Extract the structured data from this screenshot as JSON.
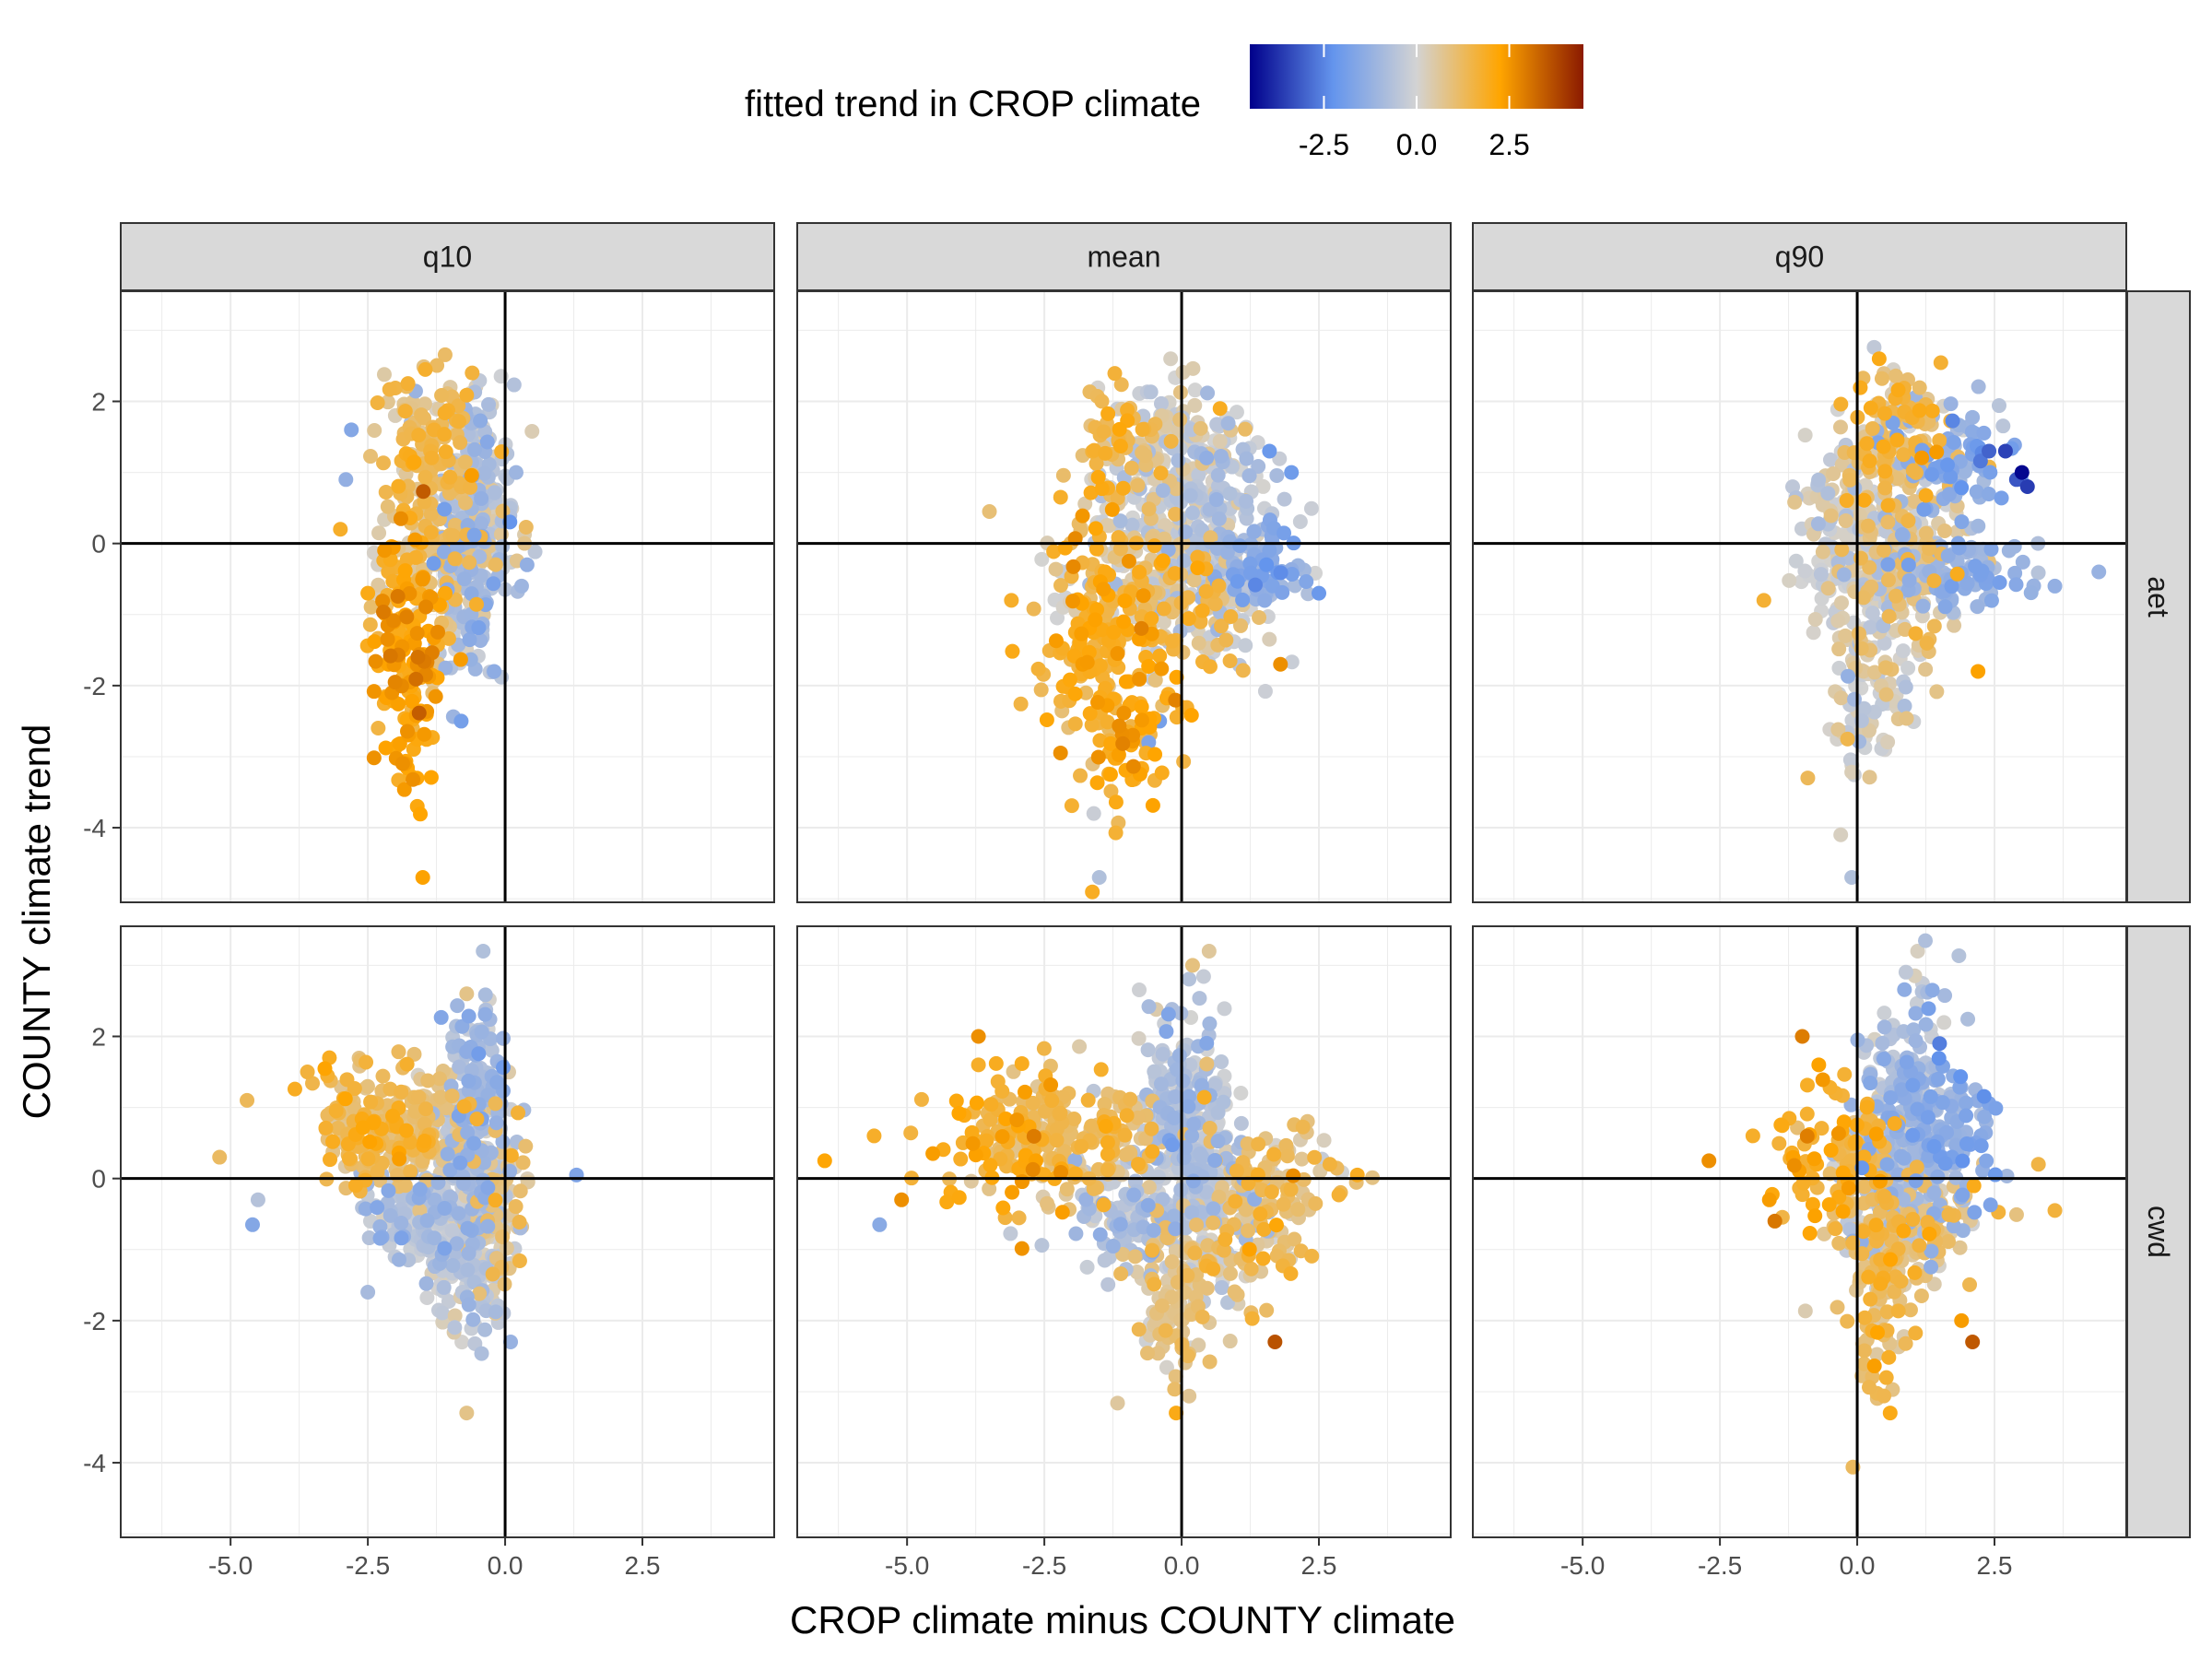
{
  "chart_data": {
    "type": "scatter",
    "facet_columns": [
      "q10",
      "mean",
      "q90"
    ],
    "facet_rows": [
      "aet",
      "cwd"
    ],
    "xlabel": "CROP climate minus COUNTY climate",
    "ylabel": "COUNTY climate trend",
    "xlim": [
      -7.0,
      4.9
    ],
    "ylim": [
      -5.05,
      3.55
    ],
    "x_ticks": [
      -5.0,
      -2.5,
      0.0,
      2.5
    ],
    "x_tick_labels": [
      "-5.0",
      "-2.5",
      "0.0",
      "2.5"
    ],
    "y_ticks": [
      -4,
      -2,
      0,
      2
    ],
    "y_tick_labels": [
      "-4",
      "-2",
      "0",
      "2"
    ],
    "reference_lines": {
      "x": 0,
      "y": 0
    },
    "grid": true,
    "legend": {
      "title": "fitted trend in CROP climate",
      "position": "top",
      "range": [
        -4.5,
        4.5
      ],
      "ticks": [
        -2.5,
        0.0,
        2.5
      ],
      "tick_labels": [
        "-2.5",
        "0.0",
        "2.5"
      ],
      "colors": [
        "#00008b",
        "#6495ed",
        "#d3d3d3",
        "#ffa500",
        "#8b1a00"
      ]
    },
    "panels": [
      {
        "col": "q10",
        "row": "aet",
        "clusters": [
          {
            "cx": -1.4,
            "cy": 1.3,
            "sx": 0.5,
            "sy": 0.55,
            "n": 120,
            "c": 1.2
          },
          {
            "cx": -0.6,
            "cy": 1.0,
            "sx": 0.35,
            "sy": 0.6,
            "n": 100,
            "c": -0.4
          },
          {
            "cx": -1.8,
            "cy": -1.5,
            "sx": 0.3,
            "sy": 0.9,
            "n": 160,
            "c": 2.2
          },
          {
            "cx": -1.2,
            "cy": -0.2,
            "sx": 0.5,
            "sy": 0.6,
            "n": 140,
            "c": 0.7
          },
          {
            "cx": -0.6,
            "cy": -0.6,
            "sx": 0.3,
            "sy": 0.7,
            "n": 110,
            "c": -0.7
          },
          {
            "cx": -0.3,
            "cy": 0.5,
            "sx": 0.3,
            "sy": 0.6,
            "n": 70,
            "c": -0.5
          }
        ],
        "points": [
          {
            "x": -2.8,
            "y": 1.6,
            "c": -1.6
          },
          {
            "x": -2.9,
            "y": 0.9,
            "c": -1.3
          },
          {
            "x": -3.0,
            "y": 0.2,
            "c": 1.8
          },
          {
            "x": -2.5,
            "y": -0.7,
            "c": 2.0
          },
          {
            "x": -1.5,
            "y": -4.7,
            "c": 2.3
          },
          {
            "x": -1.6,
            "y": -3.7,
            "c": 2.1
          },
          {
            "x": 0.4,
            "y": -0.3,
            "c": -1.3
          },
          {
            "x": 0.3,
            "y": -0.6,
            "c": -1.1
          },
          {
            "x": 0.2,
            "y": 1.0,
            "c": -1.1
          },
          {
            "x": -0.2,
            "y": -1.8,
            "c": -1.4
          },
          {
            "x": -0.8,
            "y": -2.5,
            "c": -1.9
          },
          {
            "x": -0.6,
            "y": 2.4,
            "c": 1.6
          },
          {
            "x": -1.0,
            "y": 2.2,
            "c": 0.5
          },
          {
            "x": -2.0,
            "y": 1.8,
            "c": 0.3
          }
        ]
      },
      {
        "col": "mean",
        "row": "aet",
        "clusters": [
          {
            "cx": -0.1,
            "cy": 1.3,
            "sx": 0.6,
            "sy": 0.55,
            "n": 150,
            "c": -0.1
          },
          {
            "cx": 0.7,
            "cy": 0.9,
            "sx": 0.5,
            "sy": 0.45,
            "n": 80,
            "c": -0.5
          },
          {
            "cx": -1.2,
            "cy": 1.4,
            "sx": 0.5,
            "sy": 0.4,
            "n": 60,
            "c": 1.4
          },
          {
            "cx": -1.4,
            "cy": -1.3,
            "sx": 0.6,
            "sy": 0.9,
            "n": 180,
            "c": 1.8
          },
          {
            "cx": -0.5,
            "cy": -0.3,
            "sx": 0.8,
            "sy": 0.6,
            "n": 200,
            "c": 0.1
          },
          {
            "cx": 0.6,
            "cy": -0.4,
            "sx": 0.6,
            "sy": 0.5,
            "n": 130,
            "c": -0.3
          },
          {
            "cx": 1.6,
            "cy": -0.4,
            "sx": 0.4,
            "sy": 0.25,
            "n": 70,
            "c": -1.4
          },
          {
            "cx": -0.9,
            "cy": -2.6,
            "sx": 0.5,
            "sy": 0.5,
            "n": 60,
            "c": 2.0
          },
          {
            "cx": 0.3,
            "cy": -0.9,
            "sx": 0.5,
            "sy": 0.45,
            "n": 60,
            "c": 1.2
          }
        ],
        "points": [
          {
            "x": -3.5,
            "y": 0.45,
            "c": 1.0
          },
          {
            "x": -3.1,
            "y": -0.8,
            "c": 1.8
          },
          {
            "x": -1.5,
            "y": -4.7,
            "c": -0.7
          },
          {
            "x": -1.6,
            "y": -3.8,
            "c": -0.2
          },
          {
            "x": 2.5,
            "y": -0.7,
            "c": -2.1
          },
          {
            "x": 2.0,
            "y": 1.0,
            "c": -2.0
          },
          {
            "x": 1.6,
            "y": 1.3,
            "c": -2.1
          },
          {
            "x": 1.8,
            "y": -1.7,
            "c": 2.6
          },
          {
            "x": 0.7,
            "y": 1.9,
            "c": 1.9
          },
          {
            "x": -0.6,
            "y": -2.8,
            "c": -1.7
          },
          {
            "x": -0.4,
            "y": -2.5,
            "c": -1.9
          },
          {
            "x": -0.2,
            "y": 2.6,
            "c": 0.2
          }
        ]
      },
      {
        "col": "q90",
        "row": "aet",
        "clusters": [
          {
            "cx": 0.7,
            "cy": 1.4,
            "sx": 0.45,
            "sy": 0.6,
            "n": 120,
            "c": 1.2
          },
          {
            "cx": 1.7,
            "cy": 1.2,
            "sx": 0.5,
            "sy": 0.4,
            "n": 90,
            "c": -1.3
          },
          {
            "cx": 0.2,
            "cy": -0.2,
            "sx": 0.6,
            "sy": 0.75,
            "n": 220,
            "c": -0.1
          },
          {
            "cx": 0.9,
            "cy": -0.4,
            "sx": 0.5,
            "sy": 0.6,
            "n": 120,
            "c": 0.8
          },
          {
            "cx": 1.9,
            "cy": -0.4,
            "sx": 0.6,
            "sy": 0.25,
            "n": 100,
            "c": -1.1
          },
          {
            "cx": 0.2,
            "cy": -2.2,
            "sx": 0.35,
            "sy": 0.6,
            "n": 80,
            "c": 0.1
          },
          {
            "cx": -0.5,
            "cy": 0.6,
            "sx": 0.3,
            "sy": 0.5,
            "n": 40,
            "c": 0.3
          }
        ],
        "points": [
          {
            "x": 2.9,
            "y": 0.9,
            "c": -3.2
          },
          {
            "x": 3.0,
            "y": 1.0,
            "c": -4.4
          },
          {
            "x": 3.1,
            "y": 0.8,
            "c": -3.6
          },
          {
            "x": 2.4,
            "y": 1.3,
            "c": -3.0
          },
          {
            "x": 2.7,
            "y": 1.3,
            "c": -3.5
          },
          {
            "x": 4.4,
            "y": -0.4,
            "c": -1.2
          },
          {
            "x": 3.6,
            "y": -0.6,
            "c": -1.3
          },
          {
            "x": 2.2,
            "y": -1.8,
            "c": 2.3
          },
          {
            "x": 0.4,
            "y": 2.6,
            "c": 2.0
          },
          {
            "x": -0.1,
            "y": -4.7,
            "c": -0.7
          },
          {
            "x": -0.3,
            "y": -4.1,
            "c": 0.2
          },
          {
            "x": -0.9,
            "y": -3.3,
            "c": 1.3
          },
          {
            "x": -1.7,
            "y": -0.8,
            "c": 1.7
          },
          {
            "x": -0.9,
            "y": 0.7,
            "c": 0.2
          }
        ]
      },
      {
        "col": "q10",
        "row": "cwd",
        "clusters": [
          {
            "cx": -2.3,
            "cy": 0.7,
            "sx": 0.6,
            "sy": 0.4,
            "n": 160,
            "c": 1.3
          },
          {
            "cx": -1.4,
            "cy": 0.8,
            "sx": 0.5,
            "sy": 0.4,
            "n": 110,
            "c": 0.8
          },
          {
            "cx": -0.5,
            "cy": 1.1,
            "sx": 0.3,
            "sy": 0.7,
            "n": 140,
            "c": -0.9
          },
          {
            "cx": -0.9,
            "cy": -0.5,
            "sx": 0.45,
            "sy": 0.55,
            "n": 150,
            "c": -0.5
          },
          {
            "cx": -0.2,
            "cy": -0.2,
            "sx": 0.3,
            "sy": 0.6,
            "n": 100,
            "c": 0.6
          },
          {
            "cx": -0.6,
            "cy": -1.6,
            "sx": 0.3,
            "sy": 0.5,
            "n": 80,
            "c": -0.3
          },
          {
            "cx": -1.8,
            "cy": -0.5,
            "sx": 0.5,
            "sy": 0.35,
            "n": 70,
            "c": -0.8
          }
        ],
        "points": [
          {
            "x": -5.2,
            "y": 0.3,
            "c": 1.2
          },
          {
            "x": -4.7,
            "y": 1.1,
            "c": 1.3
          },
          {
            "x": -4.6,
            "y": -0.65,
            "c": -1.6
          },
          {
            "x": -4.5,
            "y": -0.3,
            "c": -0.6
          },
          {
            "x": -3.6,
            "y": 1.5,
            "c": 1.6
          },
          {
            "x": -3.2,
            "y": 1.7,
            "c": 1.9
          },
          {
            "x": 1.3,
            "y": 0.05,
            "c": -1.7
          },
          {
            "x": 0.1,
            "y": -2.3,
            "c": -1.2
          },
          {
            "x": -0.7,
            "y": -3.3,
            "c": 0.8
          },
          {
            "x": -0.4,
            "y": 3.2,
            "c": -0.7
          },
          {
            "x": -0.7,
            "y": 2.6,
            "c": 0.8
          },
          {
            "x": -2.5,
            "y": -1.6,
            "c": -0.9
          }
        ]
      },
      {
        "col": "mean",
        "row": "cwd",
        "clusters": [
          {
            "cx": -1.9,
            "cy": 0.6,
            "sx": 0.9,
            "sy": 0.45,
            "n": 200,
            "c": 1.2
          },
          {
            "cx": -3.4,
            "cy": 0.5,
            "sx": 0.9,
            "sy": 0.55,
            "n": 70,
            "c": 1.9
          },
          {
            "cx": 0.0,
            "cy": 0.9,
            "sx": 0.4,
            "sy": 0.8,
            "n": 180,
            "c": -0.6
          },
          {
            "cx": 0.4,
            "cy": -0.2,
            "sx": 0.7,
            "sy": 0.6,
            "n": 200,
            "c": -0.4
          },
          {
            "cx": -0.1,
            "cy": -1.6,
            "sx": 0.4,
            "sy": 0.6,
            "n": 120,
            "c": 0.8
          },
          {
            "cx": 1.6,
            "cy": 0.0,
            "sx": 0.6,
            "sy": 0.4,
            "n": 80,
            "c": 0.9
          },
          {
            "cx": 1.2,
            "cy": -1.0,
            "sx": 0.5,
            "sy": 0.4,
            "n": 60,
            "c": 1.1
          },
          {
            "cx": -1.1,
            "cy": -0.6,
            "sx": 0.6,
            "sy": 0.4,
            "n": 80,
            "c": -0.6
          }
        ],
        "points": [
          {
            "x": -6.5,
            "y": 0.25,
            "c": 2.2
          },
          {
            "x": -5.6,
            "y": 0.6,
            "c": 1.8
          },
          {
            "x": -5.5,
            "y": -0.65,
            "c": -1.5
          },
          {
            "x": -5.1,
            "y": -0.3,
            "c": 2.6
          },
          {
            "x": -3.7,
            "y": 2.0,
            "c": 2.6
          },
          {
            "x": -3.7,
            "y": 1.6,
            "c": 1.8
          },
          {
            "x": 3.2,
            "y": 0.05,
            "c": 1.9
          },
          {
            "x": 2.7,
            "y": 0.2,
            "c": 1.6
          },
          {
            "x": 1.7,
            "y": -2.3,
            "c": 3.6
          },
          {
            "x": 0.5,
            "y": 3.2,
            "c": 0.6
          },
          {
            "x": -0.1,
            "y": -3.3,
            "c": 2.0
          },
          {
            "x": 0.2,
            "y": 3.0,
            "c": 0.9
          }
        ]
      },
      {
        "col": "q90",
        "row": "cwd",
        "clusters": [
          {
            "cx": 0.9,
            "cy": 0.9,
            "sx": 0.45,
            "sy": 0.8,
            "n": 200,
            "c": -0.9
          },
          {
            "cx": 1.7,
            "cy": 0.6,
            "sx": 0.45,
            "sy": 0.6,
            "n": 100,
            "c": -1.3
          },
          {
            "cx": 0.0,
            "cy": 0.3,
            "sx": 0.4,
            "sy": 0.5,
            "n": 80,
            "c": 1.3
          },
          {
            "cx": 0.6,
            "cy": -0.4,
            "sx": 0.4,
            "sy": 0.5,
            "n": 120,
            "c": -0.4
          },
          {
            "cx": 0.4,
            "cy": -1.6,
            "sx": 0.3,
            "sy": 0.7,
            "n": 120,
            "c": 1.1
          },
          {
            "cx": 1.3,
            "cy": -0.7,
            "sx": 0.5,
            "sy": 0.4,
            "n": 90,
            "c": 1.0
          },
          {
            "cx": -0.8,
            "cy": 0.2,
            "sx": 0.5,
            "sy": 0.5,
            "n": 40,
            "c": 1.9
          }
        ],
        "points": [
          {
            "x": -2.7,
            "y": 0.25,
            "c": 2.6
          },
          {
            "x": -1.9,
            "y": 0.6,
            "c": 1.8
          },
          {
            "x": -1.6,
            "y": -0.3,
            "c": 2.4
          },
          {
            "x": -1.5,
            "y": -0.6,
            "c": 3.0
          },
          {
            "x": -1.0,
            "y": 2.0,
            "c": 2.9
          },
          {
            "x": -0.7,
            "y": 1.6,
            "c": 2.3
          },
          {
            "x": 3.6,
            "y": -0.45,
            "c": 1.6
          },
          {
            "x": 3.3,
            "y": 0.2,
            "c": 1.5
          },
          {
            "x": 2.1,
            "y": -2.3,
            "c": 3.5
          },
          {
            "x": 1.9,
            "y": -2.0,
            "c": 2.4
          },
          {
            "x": 1.1,
            "y": 3.2,
            "c": 0.2
          },
          {
            "x": 1.5,
            "y": 1.9,
            "c": -2.6
          },
          {
            "x": 0.6,
            "y": -3.3,
            "c": 2.0
          },
          {
            "x": 1.4,
            "y": -0.2,
            "c": -1.2
          }
        ]
      }
    ]
  }
}
